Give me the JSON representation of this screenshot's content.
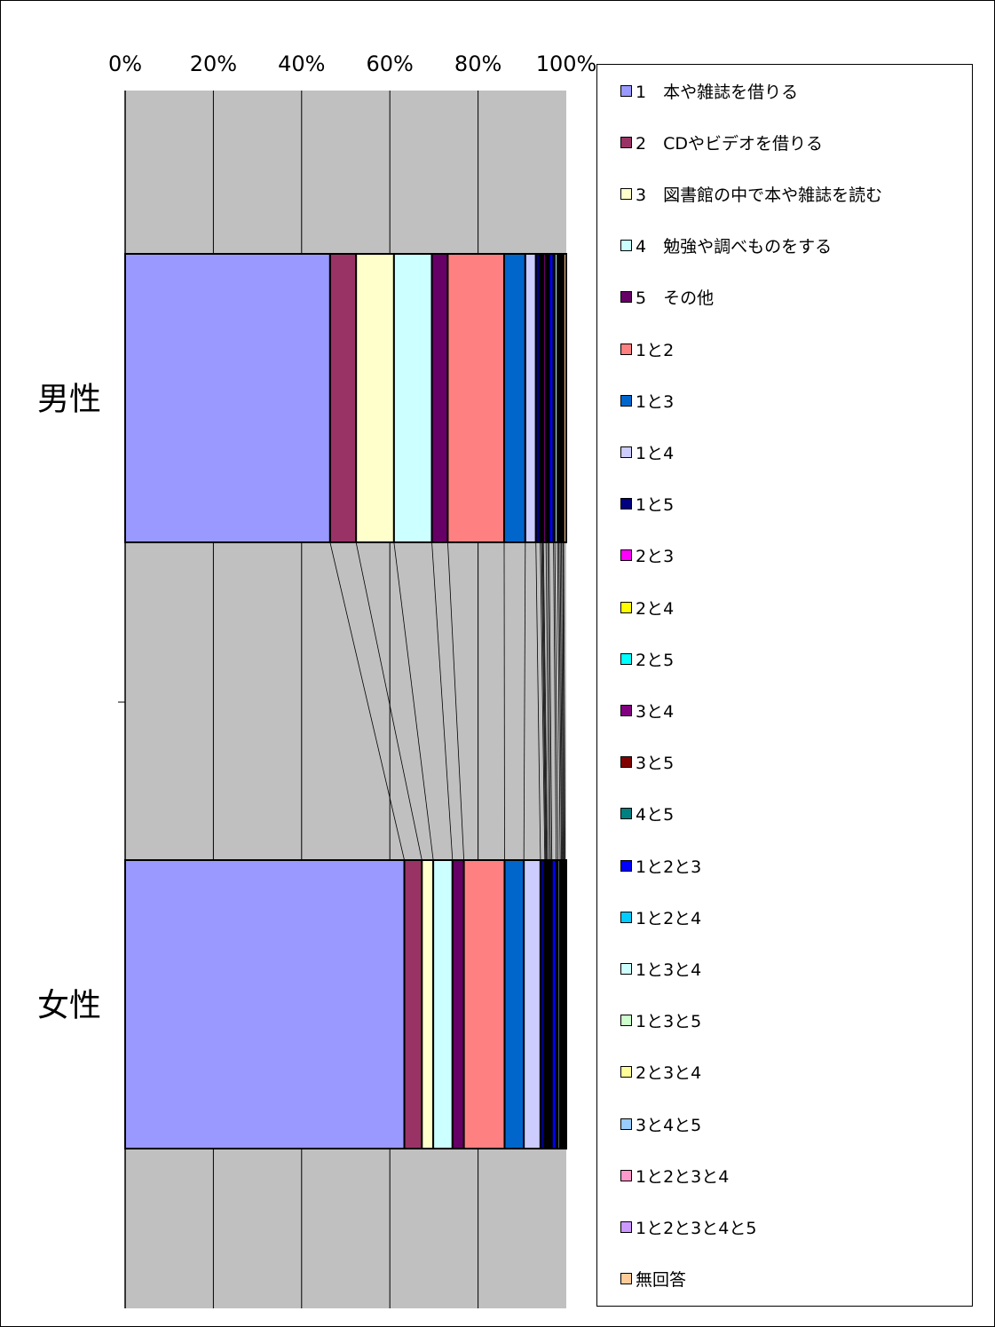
{
  "chart_data": {
    "type": "bar",
    "orientation": "horizontal",
    "stacked": "percent",
    "series_lines": true,
    "grid": true,
    "xlim": [
      0,
      100
    ],
    "x_ticks": [
      "0%",
      "20%",
      "40%",
      "60%",
      "80%",
      "100%"
    ],
    "categories": [
      "男性",
      "女性"
    ],
    "legend_position": "right",
    "plot_background": "#c0c0c0",
    "series": [
      {
        "name": "1　本や雑誌を借りる",
        "color": "#9999ff",
        "values": [
          46.5,
          63.8
        ]
      },
      {
        "name": "2　CDやビデオを借りる",
        "color": "#993366",
        "values": [
          5.9,
          4.0
        ]
      },
      {
        "name": "3　図書館の中で本や雑誌を読む",
        "color": "#ffffcc",
        "values": [
          8.6,
          2.6
        ]
      },
      {
        "name": "4　勉強や調べものをする",
        "color": "#ccffff",
        "values": [
          8.6,
          4.4
        ]
      },
      {
        "name": "5　その他",
        "color": "#660066",
        "values": [
          3.6,
          2.6
        ]
      },
      {
        "name": "1と2",
        "color": "#ff8080",
        "values": [
          12.8,
          9.3
        ]
      },
      {
        "name": "1と3",
        "color": "#0066cc",
        "values": [
          4.8,
          4.4
        ]
      },
      {
        "name": "1と4",
        "color": "#ccccff",
        "values": [
          2.4,
          3.8
        ]
      },
      {
        "name": "1と5",
        "color": "#000080",
        "values": [
          1.0,
          1.0
        ]
      },
      {
        "name": "2と3",
        "color": "#ff00ff",
        "values": [
          0.3,
          0.2
        ]
      },
      {
        "name": "2と4",
        "color": "#ffff00",
        "values": [
          0.2,
          0.2
        ]
      },
      {
        "name": "2と5",
        "color": "#00ffff",
        "values": [
          0.2,
          0.2
        ]
      },
      {
        "name": "3と4",
        "color": "#800080",
        "values": [
          0.6,
          0.4
        ]
      },
      {
        "name": "3と5",
        "color": "#800000",
        "values": [
          0.4,
          0.3
        ]
      },
      {
        "name": "4と5",
        "color": "#008080",
        "values": [
          0.3,
          0.3
        ]
      },
      {
        "name": "1と2と3",
        "color": "#0000ff",
        "values": [
          1.0,
          1.0
        ]
      },
      {
        "name": "1と2と4",
        "color": "#00ccff",
        "values": [
          0.3,
          0.4
        ]
      },
      {
        "name": "1と3と4",
        "color": "#ccffff",
        "values": [
          0.6,
          0.5
        ]
      },
      {
        "name": "1と3と5",
        "color": "#ccffcc",
        "values": [
          0.3,
          0.3
        ]
      },
      {
        "name": "2と3と4",
        "color": "#ffff99",
        "values": [
          0.3,
          0.2
        ]
      },
      {
        "name": "3と4と5",
        "color": "#99ccff",
        "values": [
          0.3,
          0.2
        ]
      },
      {
        "name": "1と2と3と4",
        "color": "#ff99cc",
        "values": [
          0.3,
          0.2
        ]
      },
      {
        "name": "1と2と3と4と5",
        "color": "#cc99ff",
        "values": [
          0.2,
          0.2
        ]
      },
      {
        "name": "無回答",
        "color": "#ffcc99",
        "values": [
          0.6,
          0.3
        ]
      }
    ]
  }
}
